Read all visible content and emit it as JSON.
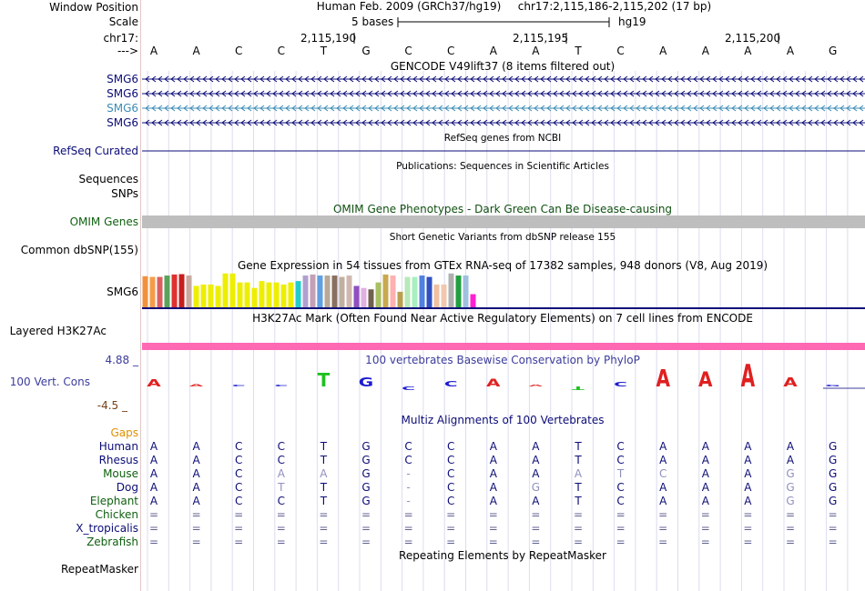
{
  "left_labels": {
    "window_position": "Window Position",
    "scale": "Scale",
    "chrom": "chr17:",
    "arrow": "--->",
    "smg6": [
      "SMG6",
      "SMG6",
      "SMG6",
      "SMG6"
    ],
    "refseq": "RefSeq Curated",
    "sequences": "Sequences",
    "snps": "SNPs",
    "omim": "OMIM Genes",
    "dbsnp": "Common dbSNP(155)",
    "gtex_gene": "SMG6",
    "h3k27ac": "Layered H3K27Ac",
    "y_top": "4.88 _",
    "cons": "100 Vert. Cons",
    "y_bottom": "-4.5 _",
    "gaps": "Gaps",
    "species": [
      "Human",
      "Rhesus",
      "Mouse",
      "Dog",
      "Elephant",
      "Chicken",
      "X_tropicalis",
      "Zebrafish"
    ],
    "repeatmasker": "RepeatMasker"
  },
  "header": {
    "assembly": "Human Feb. 2009 (GRCh37/hg19)",
    "position": "chr17:2,115,186-2,115,202 (17 bp)",
    "scale_label": "5 bases",
    "scale_db": "hg19",
    "ticks": [
      "2,115,190",
      "2,115,195",
      "2,115,200"
    ]
  },
  "sequence": [
    "A",
    "A",
    "C",
    "C",
    "T",
    "G",
    "C",
    "C",
    "A",
    "A",
    "T",
    "C",
    "A",
    "A",
    "A",
    "A",
    "G"
  ],
  "tracks": {
    "gencode": "GENCODE V49lift37 (8 items filtered out)",
    "refseq_title": "RefSeq genes from NCBI",
    "publications": "Publications: Sequences in Scientific Articles",
    "omim_title": "OMIM Gene Phenotypes - Dark Green Can Be Disease-causing",
    "dbsnp_title": "Short Genetic Variants from dbSNP release 155",
    "gtex_title": "Gene Expression in 54 tissues from GTEx RNA-seq of 17382 samples, 948 donors (V8, Aug 2019)",
    "h3k27ac_title": "H3K27Ac Mark (Often Found Near Active Regulatory Elements) on 7 cell lines from ENCODE",
    "phylop_title": "100 vertebrates Basewise Conservation by PhyloP",
    "multiz_title": "Multiz Alignments of 100 Vertebrates",
    "repeat_title": "Repeating Elements by RepeatMasker"
  },
  "alignment": {
    "Human": [
      "A",
      "A",
      "C",
      "C",
      "T",
      "G",
      "C",
      "C",
      "A",
      "A",
      "T",
      "C",
      "A",
      "A",
      "A",
      "A",
      "G"
    ],
    "Rhesus": [
      "A",
      "A",
      "C",
      "C",
      "T",
      "G",
      "C",
      "C",
      "A",
      "A",
      "T",
      "C",
      "A",
      "A",
      "A",
      "A",
      "G"
    ],
    "Mouse": [
      "A",
      "A",
      "C",
      "A",
      "A",
      "G",
      "-",
      "C",
      "A",
      "A",
      "A",
      "T",
      "C",
      "A",
      "A",
      "G",
      "G"
    ],
    "Dog": [
      "A",
      "A",
      "C",
      "T",
      "T",
      "G",
      "-",
      "C",
      "A",
      "G",
      "T",
      "C",
      "A",
      "A",
      "A",
      "G",
      "G"
    ],
    "Elephant": [
      "A",
      "A",
      "C",
      "C",
      "T",
      "G",
      "-",
      "C",
      "A",
      "A",
      "T",
      "C",
      "A",
      "A",
      "A",
      "G",
      "G"
    ],
    "Chicken": [
      "=",
      "=",
      "=",
      "=",
      "=",
      "=",
      "=",
      "=",
      "=",
      "=",
      "=",
      "=",
      "=",
      "=",
      "=",
      "=",
      "="
    ],
    "X_tropicalis": [
      "=",
      "=",
      "=",
      "=",
      "=",
      "=",
      "=",
      "=",
      "=",
      "=",
      "=",
      "=",
      "=",
      "=",
      "=",
      "=",
      "="
    ],
    "Zebrafish": [
      "=",
      "=",
      "=",
      "=",
      "=",
      "=",
      "=",
      "=",
      "=",
      "=",
      "=",
      "=",
      "=",
      "=",
      "=",
      "=",
      "="
    ]
  },
  "gtex_bars": [
    {
      "color": "#f0923c",
      "value": 0.9
    },
    {
      "color": "#f39d4a",
      "value": 0.88
    },
    {
      "color": "#d95f5f",
      "value": 0.88
    },
    {
      "color": "#5aa35a",
      "value": 0.92
    },
    {
      "color": "#e03030",
      "value": 0.95
    },
    {
      "color": "#c81e1e",
      "value": 0.96
    },
    {
      "color": "#c8a8a0",
      "value": 0.92
    },
    {
      "color": "#eeee00",
      "value": 0.62
    },
    {
      "color": "#eeee00",
      "value": 0.66
    },
    {
      "color": "#eeee00",
      "value": 0.66
    },
    {
      "color": "#eeee00",
      "value": 0.62
    },
    {
      "color": "#eeee00",
      "value": 0.98
    },
    {
      "color": "#eeee00",
      "value": 0.98
    },
    {
      "color": "#eeee00",
      "value": 0.72
    },
    {
      "color": "#eeee00",
      "value": 0.72
    },
    {
      "color": "#eeee00",
      "value": 0.56
    },
    {
      "color": "#eeee00",
      "value": 0.76
    },
    {
      "color": "#eeee00",
      "value": 0.72
    },
    {
      "color": "#eeee00",
      "value": 0.72
    },
    {
      "color": "#eeee00",
      "value": 0.66
    },
    {
      "color": "#eeee00",
      "value": 0.72
    },
    {
      "color": "#22cccc",
      "value": 0.76
    },
    {
      "color": "#b0a0d0",
      "value": 0.92
    },
    {
      "color": "#c4a0b4",
      "value": 0.95
    },
    {
      "color": "#60a0e0",
      "value": 0.92
    },
    {
      "color": "#b8a898",
      "value": 0.92
    },
    {
      "color": "#8a7060",
      "value": 0.92
    },
    {
      "color": "#c0b0a0",
      "value": 0.88
    },
    {
      "color": "#d0b8b0",
      "value": 0.92
    },
    {
      "color": "#9050c0",
      "value": 0.62
    },
    {
      "color": "#e0b0e0",
      "value": 0.56
    },
    {
      "color": "#706050",
      "value": 0.52
    },
    {
      "color": "#a8c060",
      "value": 0.72
    },
    {
      "color": "#c8a850",
      "value": 0.95
    },
    {
      "color": "#ffb0b0",
      "value": 0.92
    },
    {
      "color": "#b8a050",
      "value": 0.45
    },
    {
      "color": "#b8e8b8",
      "value": 0.88
    },
    {
      "color": "#a8f0c0",
      "value": 0.88
    },
    {
      "color": "#5080e0",
      "value": 0.92
    },
    {
      "color": "#3050c0",
      "value": 0.88
    },
    {
      "color": "#f0c0a0",
      "value": 0.66
    },
    {
      "color": "#f0c8b0",
      "value": 0.66
    },
    {
      "color": "#b0b0b0",
      "value": 0.98
    },
    {
      "color": "#20a040",
      "value": 0.92
    },
    {
      "color": "#a0c0e0",
      "value": 0.92
    },
    {
      "color": "#ff20d0",
      "value": 0.38
    }
  ],
  "phylop_height": [
    0.28,
    0.1,
    0,
    0,
    0.55,
    0.35,
    0.15,
    0.22,
    0.3,
    0,
    0.15,
    0.2,
    0.7,
    0.6,
    0.9,
    0.35,
    0.08
  ],
  "phylop_direction": [
    "up",
    "up",
    "up",
    "up",
    "up",
    "up",
    "down",
    "up",
    "up",
    "up",
    "down",
    "up",
    "up",
    "up",
    "up",
    "up",
    "up"
  ],
  "colors": {
    "gene_blue": "#0c0c78",
    "gene_light": "#3c8cb4",
    "omim_bar": "#bebebe",
    "omim_text": "#105010",
    "h3k27ac": "#ff69b4",
    "track_line": "#0c0c78",
    "phylop_text": "#3c3c9c",
    "y_axis": "#784018",
    "gaps": "#e09000",
    "species_blue": "#0c0c78",
    "species_green": "#106010"
  }
}
